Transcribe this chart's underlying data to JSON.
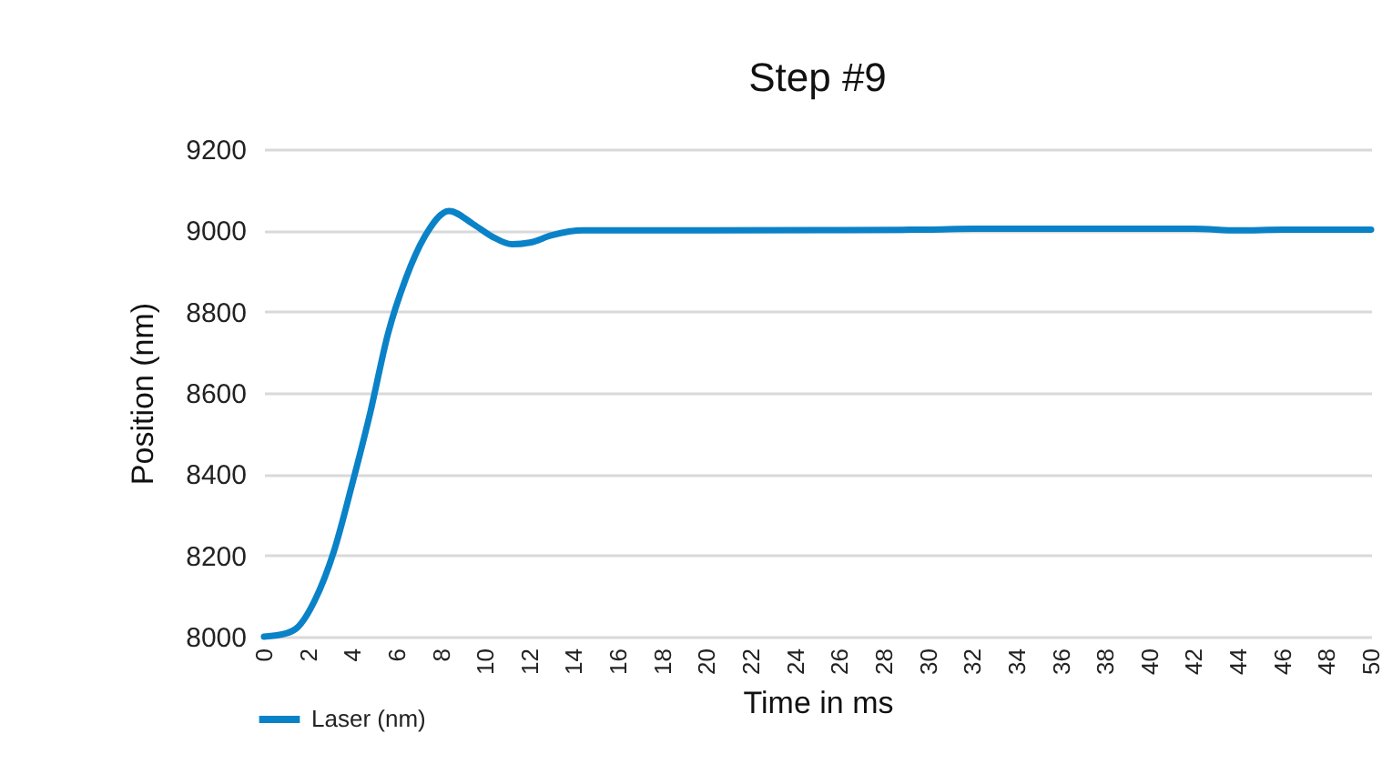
{
  "chart_data": {
    "type": "line",
    "title": "Step #9",
    "xlabel": "Time in ms",
    "ylabel": "Position (nm)",
    "x": [
      0,
      1,
      1.5,
      2.3,
      3.15,
      3.97,
      4.8,
      5.6,
      6.4,
      7.26,
      8.36,
      9.46,
      10.3,
      11.2,
      12,
      13,
      14.4,
      16,
      20,
      26,
      30,
      32,
      36,
      40,
      42,
      44,
      46,
      50
    ],
    "series": [
      {
        "name": "Laser (nm)",
        "color": "#0a82c8",
        "values": [
          8000,
          8008,
          8022,
          8090,
          8209,
          8373,
          8552,
          8746,
          8881,
          8985,
          9048,
          9015,
          8985,
          8966,
          8970,
          8988,
          9000,
          9000,
          9000,
          9001,
          9002,
          9004,
          9004,
          9004,
          9004,
          9000,
          9002,
          9002
        ]
      }
    ],
    "xlim": [
      0,
      50
    ],
    "xticks": [
      0,
      2,
      4,
      6,
      8,
      10,
      12,
      14,
      16,
      18,
      20,
      22,
      24,
      26,
      28,
      30,
      32,
      34,
      36,
      38,
      40,
      42,
      44,
      46,
      48,
      50
    ],
    "ylim": [
      8000,
      9200
    ],
    "yticks": [
      8000,
      8200,
      8400,
      8600,
      8800,
      9000,
      9200
    ],
    "grid": "y",
    "legend": "bottom left",
    "marker": "none",
    "line_style": "solid"
  }
}
